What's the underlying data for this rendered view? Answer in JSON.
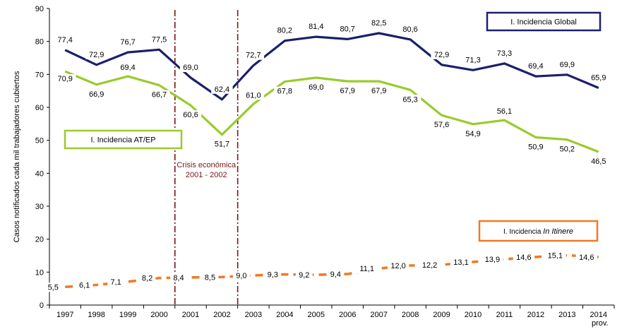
{
  "chart_data": {
    "type": "line",
    "x": [
      "1997",
      "1998",
      "1999",
      "2000",
      "2001",
      "2002",
      "2003",
      "2004",
      "2005",
      "2006",
      "2007",
      "2008",
      "2009",
      "2010",
      "2011",
      "2012",
      "2013",
      "2014"
    ],
    "x_sublabels": {
      "2014": "prov."
    },
    "ylabel": "Casos notificados cada mil trabajadores cubiertos",
    "ylim": [
      0,
      90
    ],
    "yticks": [
      0,
      10,
      20,
      30,
      40,
      50,
      60,
      70,
      80,
      90
    ],
    "grid": false,
    "series": [
      {
        "name": "I. Incidencia Global",
        "color": "#1c1f6b",
        "dash": "solid",
        "values": [
          77.4,
          72.9,
          76.7,
          77.5,
          69.0,
          62.4,
          72.7,
          80.2,
          81.4,
          80.7,
          82.5,
          80.6,
          72.9,
          71.3,
          73.3,
          69.4,
          69.9,
          65.9
        ],
        "labels": [
          "77,4",
          "72,9",
          "76,7",
          "77,5",
          "69,0",
          "62,4",
          "72,7",
          "80,2",
          "81,4",
          "80,7",
          "82,5",
          "80,6",
          "72,9",
          "71,3",
          "73,3",
          "69,4",
          "69,9",
          "65,9"
        ]
      },
      {
        "name": "I. Incidencia AT/EP",
        "color": "#9acb2c",
        "dash": "solid",
        "values": [
          70.9,
          66.9,
          69.4,
          66.7,
          60.6,
          51.7,
          61.0,
          67.8,
          69.0,
          67.9,
          67.9,
          65.3,
          57.6,
          54.9,
          56.1,
          50.9,
          50.2,
          46.5
        ],
        "labels": [
          "70,9",
          "66,9",
          "69,4",
          "66,7",
          "60,6",
          "51,7",
          "61,0",
          "67,8",
          "69,0",
          "67,9",
          "67,9",
          "65,3",
          "57,6",
          "54,9",
          "56,1",
          "50,9",
          "50,2",
          "46,5"
        ]
      },
      {
        "name_prefix": "I. Incidencia ",
        "name_italic": "In Itinere",
        "color": "#f07b23",
        "dash": "dashed",
        "values": [
          5.5,
          6.1,
          7.1,
          8.2,
          8.4,
          8.5,
          9.0,
          9.3,
          9.2,
          9.4,
          11.1,
          12.0,
          12.2,
          13.1,
          13.9,
          14.6,
          15.1,
          14.6
        ],
        "labels": [
          "5,5",
          "6,1",
          "7,1",
          "8,2",
          "8,4",
          "8,5",
          "9,0",
          "9,3",
          "9,2",
          "9,4",
          "11,1",
          "12,0",
          "12,2",
          "13,1",
          "13,9",
          "14,6",
          "15,1",
          "14,6"
        ]
      }
    ],
    "annotation": {
      "line1": "Crisis económica",
      "line2": "2001 - 2002",
      "color": "#7a1515",
      "between": [
        "2000",
        "2001",
        "2002",
        "2003"
      ]
    }
  }
}
